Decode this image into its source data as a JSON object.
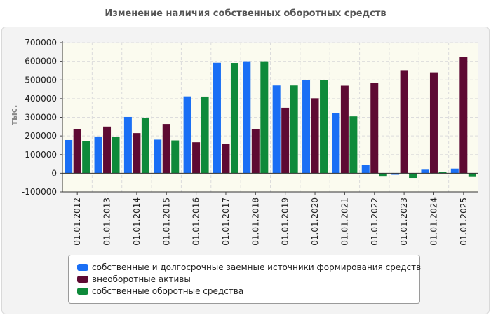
{
  "chart_data": {
    "type": "bar",
    "title": "Изменение наличия собственных оборотных средств",
    "ylabel": "тыс.",
    "ylim": [
      -100000,
      700000
    ],
    "yticks": [
      "700000",
      "600000",
      "500000",
      "400000",
      "300000",
      "200000",
      "100000",
      "0",
      "-100000"
    ],
    "categories": [
      "01.01.2012",
      "01.01.2013",
      "01.01.2014",
      "01.01.2015",
      "01.01.2016",
      "01.01.2017",
      "01.01.2018",
      "01.01.2019",
      "01.01.2020",
      "01.01.2021",
      "01.01.2022",
      "01.01.2023",
      "01.01.2024",
      "01.01.2025"
    ],
    "series": [
      {
        "name": "собственные и долгосрочные заемные источники формирования средств",
        "color": "#1a6ff5",
        "values": [
          178000,
          197000,
          302000,
          180000,
          412000,
          592000,
          600000,
          470000,
          498000,
          323000,
          46000,
          -8000,
          19000,
          25000
        ]
      },
      {
        "name": "внеоборотные активы",
        "color": "#5e0a33",
        "values": [
          238000,
          250000,
          215000,
          264000,
          166000,
          156000,
          238000,
          351000,
          402000,
          469000,
          483000,
          552000,
          540000,
          622000
        ]
      },
      {
        "name": "собственные оборотные средства",
        "color": "#0e8a3a",
        "values": [
          172000,
          193000,
          298000,
          176000,
          411000,
          591000,
          600000,
          470000,
          498000,
          305000,
          -18000,
          -25000,
          6000,
          -20000
        ]
      }
    ],
    "grid": true,
    "legend_position": "bottom"
  }
}
